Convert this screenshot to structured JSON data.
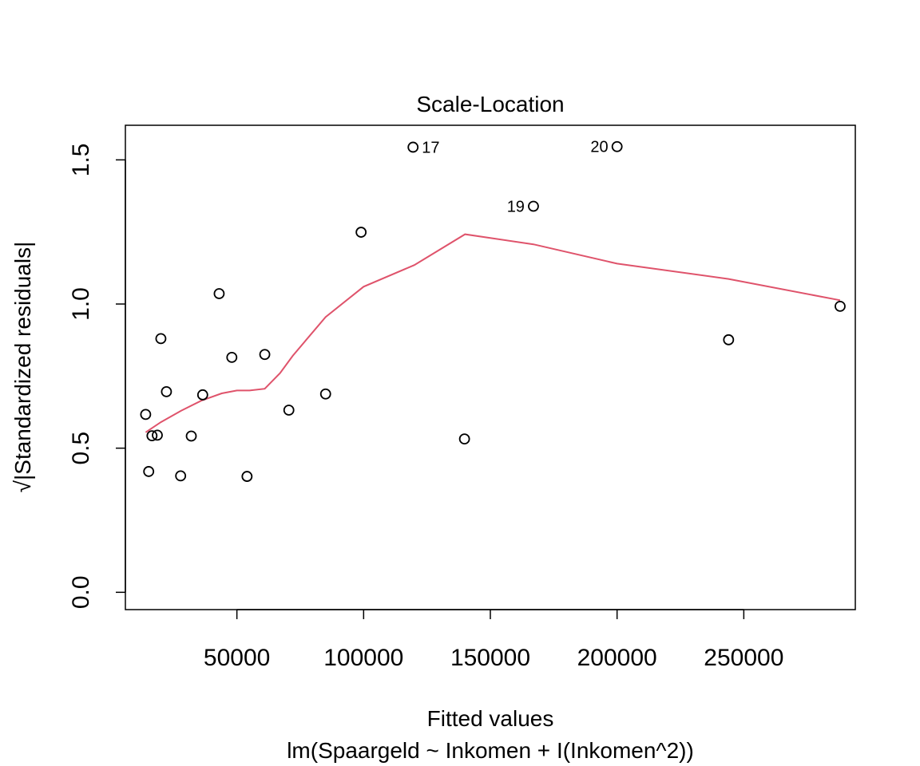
{
  "chart_data": {
    "type": "scatter",
    "title": "Scale-Location",
    "xlabel": "Fitted values",
    "subtitle": "lm(Spaargeld ~ Inkomen + I(Inkomen^2))",
    "ylabel": "√|Standardized residuals|",
    "xlim": [
      6000,
      294000
    ],
    "ylim": [
      -0.06,
      1.62
    ],
    "x_ticks": [
      50000,
      100000,
      150000,
      200000,
      250000
    ],
    "x_tick_labels": [
      "50000",
      "100000",
      "150000",
      "200000",
      "250000"
    ],
    "y_ticks": [
      0.0,
      0.5,
      1.0,
      1.5
    ],
    "y_tick_labels": [
      "0.0",
      "0.5",
      "1.0",
      "1.5"
    ],
    "grid": false,
    "points": [
      {
        "x": 14000,
        "y": 0.617
      },
      {
        "x": 15200,
        "y": 0.419
      },
      {
        "x": 16500,
        "y": 0.543
      },
      {
        "x": 18600,
        "y": 0.545
      },
      {
        "x": 20000,
        "y": 0.88
      },
      {
        "x": 22200,
        "y": 0.696
      },
      {
        "x": 27800,
        "y": 0.404
      },
      {
        "x": 32000,
        "y": 0.542
      },
      {
        "x": 36500,
        "y": 0.685
      },
      {
        "x": 43000,
        "y": 1.036
      },
      {
        "x": 48000,
        "y": 0.815
      },
      {
        "x": 54000,
        "y": 0.402
      },
      {
        "x": 61000,
        "y": 0.825
      },
      {
        "x": 70500,
        "y": 0.632
      },
      {
        "x": 85000,
        "y": 0.688
      },
      {
        "x": 99000,
        "y": 1.249
      },
      {
        "x": 119500,
        "y": 1.544,
        "label": "17"
      },
      {
        "x": 139800,
        "y": 0.532
      },
      {
        "x": 167000,
        "y": 1.339,
        "label": "19"
      },
      {
        "x": 200000,
        "y": 1.546,
        "label": "20"
      },
      {
        "x": 244000,
        "y": 0.876
      },
      {
        "x": 288000,
        "y": 0.992
      }
    ],
    "smooth_line": {
      "color": "#DF536B",
      "points": [
        [
          14000,
          0.555
        ],
        [
          20000,
          0.59
        ],
        [
          28000,
          0.63
        ],
        [
          36000,
          0.665
        ],
        [
          44000,
          0.69
        ],
        [
          50000,
          0.7
        ],
        [
          55000,
          0.7
        ],
        [
          61000,
          0.706
        ],
        [
          67000,
          0.76
        ],
        [
          72000,
          0.82
        ],
        [
          85000,
          0.955
        ],
        [
          100000,
          1.06
        ],
        [
          120000,
          1.135
        ],
        [
          140000,
          1.242
        ],
        [
          167000,
          1.207
        ],
        [
          200000,
          1.14
        ],
        [
          244000,
          1.087
        ],
        [
          288000,
          1.013
        ]
      ]
    }
  }
}
